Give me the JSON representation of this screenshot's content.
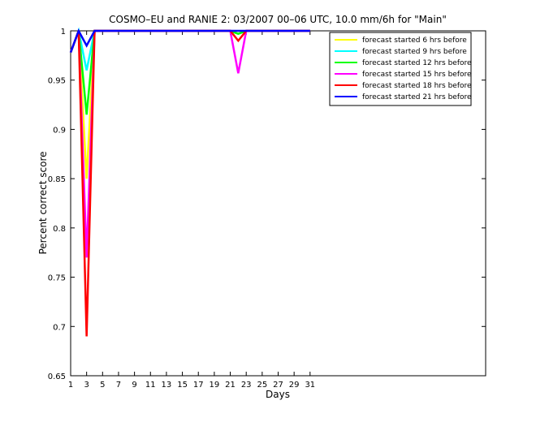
{
  "chart_data": {
    "type": "line",
    "title": "COSMO–EU and RANIE 2: 03/2007 00–06 UTC, 10.0 mm/6h for \"Main\"",
    "x_label": "Days",
    "y_label": "Percent correct score",
    "x": [
      1,
      2,
      3,
      4,
      5,
      6,
      7,
      8,
      9,
      10,
      11,
      12,
      13,
      14,
      15,
      16,
      17,
      18,
      19,
      20,
      21,
      22,
      23,
      24,
      25,
      26,
      27,
      28,
      29,
      30,
      31
    ],
    "xlim": [
      1,
      53
    ],
    "xticks": [
      1,
      3,
      5,
      7,
      9,
      11,
      13,
      15,
      17,
      19,
      21,
      23,
      25,
      27,
      29,
      31
    ],
    "ylim": [
      0.65,
      1
    ],
    "yticks": [
      0.65,
      0.7,
      0.75,
      0.8,
      0.85,
      0.9,
      0.95,
      1
    ],
    "legend": "upper right",
    "series": [
      {
        "name": "forecast started 6 hrs before",
        "color": "#ffff00",
        "values": [
          0.978,
          1,
          0.85,
          1,
          1,
          1,
          1,
          1,
          1,
          1,
          1,
          1,
          1,
          1,
          1,
          1,
          1,
          1,
          1,
          1,
          1,
          0.997,
          1,
          1,
          1,
          1,
          1,
          1,
          1,
          1,
          1
        ]
      },
      {
        "name": "forecast started 9 hrs before",
        "color": "#00ffff",
        "values": [
          0.978,
          1,
          0.96,
          1,
          1,
          1,
          1,
          1,
          1,
          1,
          1,
          1,
          1,
          1,
          1,
          1,
          1,
          1,
          1,
          1,
          1,
          0.997,
          1,
          1,
          1,
          1,
          1,
          1,
          1,
          1,
          1
        ]
      },
      {
        "name": "forecast started 12 hrs before",
        "color": "#00ff00",
        "values": [
          0.978,
          1,
          0.915,
          1,
          1,
          1,
          1,
          1,
          1,
          1,
          1,
          1,
          1,
          1,
          1,
          1,
          1,
          1,
          1,
          1,
          1,
          0.997,
          1,
          1,
          1,
          1,
          1,
          1,
          1,
          1,
          1
        ]
      },
      {
        "name": "forecast started 15 hrs before",
        "color": "#ff00ff",
        "values": [
          0.978,
          1,
          0.77,
          1,
          1,
          1,
          1,
          1,
          1,
          1,
          1,
          1,
          1,
          1,
          1,
          1,
          1,
          1,
          1,
          1,
          1,
          0.957,
          1,
          1,
          1,
          1,
          1,
          1,
          1,
          1,
          1
        ]
      },
      {
        "name": "forecast started 18 hrs before",
        "color": "#ff0000",
        "values": [
          0.978,
          1,
          0.69,
          1,
          1,
          1,
          1,
          1,
          1,
          1,
          1,
          1,
          1,
          1,
          1,
          1,
          1,
          1,
          1,
          1,
          1,
          0.99,
          1,
          1,
          1,
          1,
          1,
          1,
          1,
          1,
          1
        ]
      },
      {
        "name": "forecast started 21 hrs before",
        "color": "#0000ff",
        "values": [
          0.978,
          1,
          0.985,
          1,
          1,
          1,
          1,
          1,
          1,
          1,
          1,
          1,
          1,
          1,
          1,
          1,
          1,
          1,
          1,
          1,
          1,
          1,
          1,
          1,
          1,
          1,
          1,
          1,
          1,
          1,
          1
        ]
      }
    ]
  }
}
